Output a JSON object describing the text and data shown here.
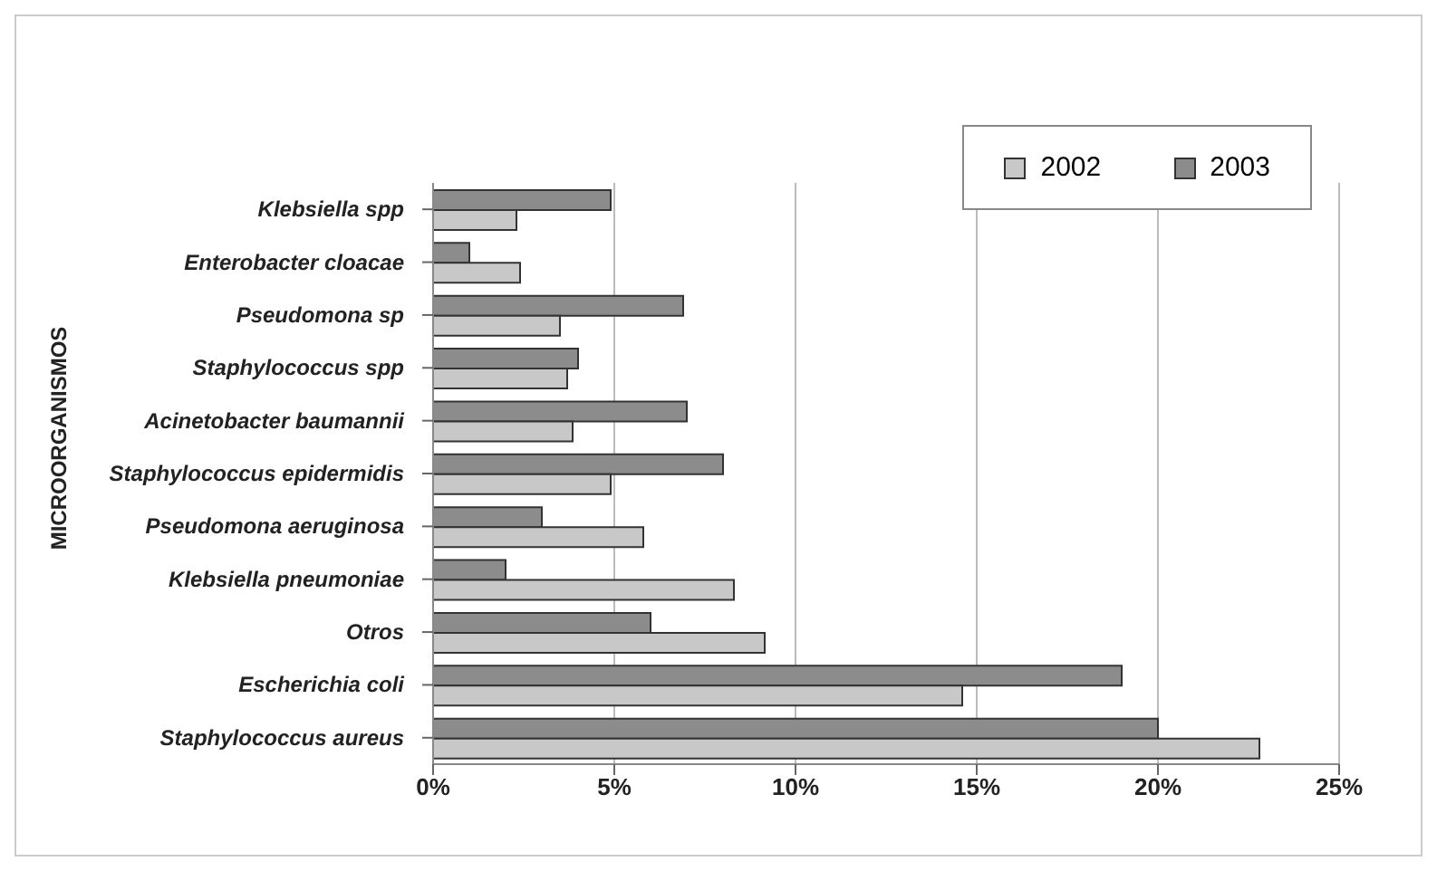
{
  "chart_data": {
    "type": "bar",
    "orientation": "horizontal",
    "ylabel": "MICROORGANISMOS",
    "categories": [
      "Klebsiella spp",
      "Enterobacter cloacae",
      "Pseudomona sp",
      "Staphylococcus spp",
      "Acinetobacter baumannii",
      "Staphylococcus epidermidis",
      "Pseudomona aeruginosa",
      "Klebsiella pneumoniae",
      "Otros",
      "Escherichia coli",
      "Staphylococcus aureus"
    ],
    "series": [
      {
        "name": "2002",
        "color": "#c8c8c8",
        "values": [
          2.3,
          2.4,
          3.5,
          3.7,
          3.85,
          4.9,
          5.8,
          8.3,
          9.15,
          14.6,
          22.8
        ]
      },
      {
        "name": "2003",
        "color": "#8c8c8c",
        "values": [
          4.9,
          1.0,
          6.9,
          4.0,
          7.0,
          8.0,
          3.0,
          2.0,
          6.0,
          19.0,
          20.0
        ]
      }
    ],
    "xlim": [
      0,
      25
    ],
    "xticks": [
      {
        "value": 0,
        "label": "0%"
      },
      {
        "value": 5,
        "label": "5%"
      },
      {
        "value": 10,
        "label": "10%"
      },
      {
        "value": 15,
        "label": "15%"
      },
      {
        "value": 20,
        "label": "20%"
      },
      {
        "value": 25,
        "label": "25%"
      }
    ],
    "grid": "x",
    "legend": "top right"
  }
}
